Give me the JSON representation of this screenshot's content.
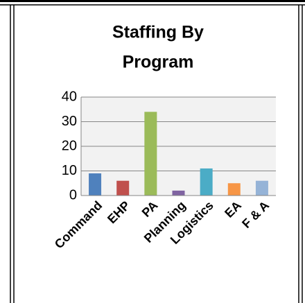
{
  "chart_data": {
    "type": "bar",
    "title": [
      "Staffing By",
      "Program"
    ],
    "categories": [
      "Command",
      "EHP",
      "PA",
      "Planning",
      "Logistics",
      "EA",
      "F & A"
    ],
    "values": [
      9,
      6,
      34,
      2,
      11,
      5,
      6
    ],
    "colors": [
      "#4f81bd",
      "#c0504d",
      "#9bbb59",
      "#8064a2",
      "#4bacc6",
      "#f79646",
      "#95b3d7"
    ],
    "ylim": [
      0,
      40
    ],
    "yticks": [
      0,
      10,
      20,
      30,
      40
    ],
    "grid": true
  }
}
